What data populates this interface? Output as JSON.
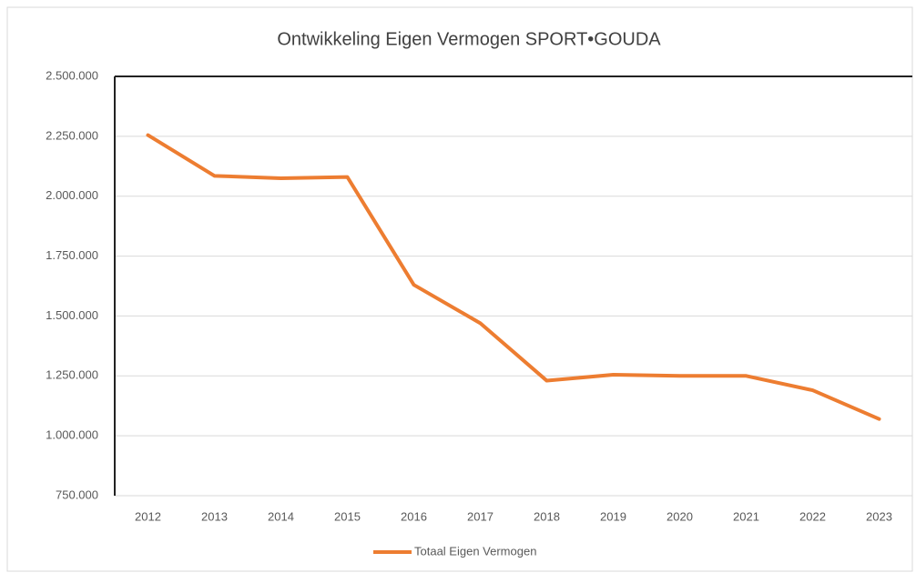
{
  "chart_data": {
    "type": "line",
    "title": "Ontwikkeling Eigen Vermogen SPORT•GOUDA",
    "categories": [
      "2012",
      "2013",
      "2014",
      "2015",
      "2016",
      "2017",
      "2018",
      "2019",
      "2020",
      "2021",
      "2022",
      "2023"
    ],
    "series": [
      {
        "name": "Totaal Eigen Vermogen",
        "color": "#ed7d31",
        "values": [
          2255000,
          2085000,
          2075000,
          2080000,
          1630000,
          1470000,
          1230000,
          1255000,
          1250000,
          1250000,
          1190000,
          1070000
        ]
      }
    ],
    "ylim": [
      750000,
      2500000
    ],
    "yticks": [
      {
        "value": 750000,
        "label": "750.000"
      },
      {
        "value": 1000000,
        "label": "1.000.000"
      },
      {
        "value": 1250000,
        "label": "1.250.000"
      },
      {
        "value": 1500000,
        "label": "1.500.000"
      },
      {
        "value": 1750000,
        "label": "1.750.000"
      },
      {
        "value": 2000000,
        "label": "2.000.000"
      },
      {
        "value": 2250000,
        "label": "2.250.000"
      },
      {
        "value": 2500000,
        "label": "2.500.000"
      }
    ],
    "grid": true,
    "legend": "bottom"
  }
}
